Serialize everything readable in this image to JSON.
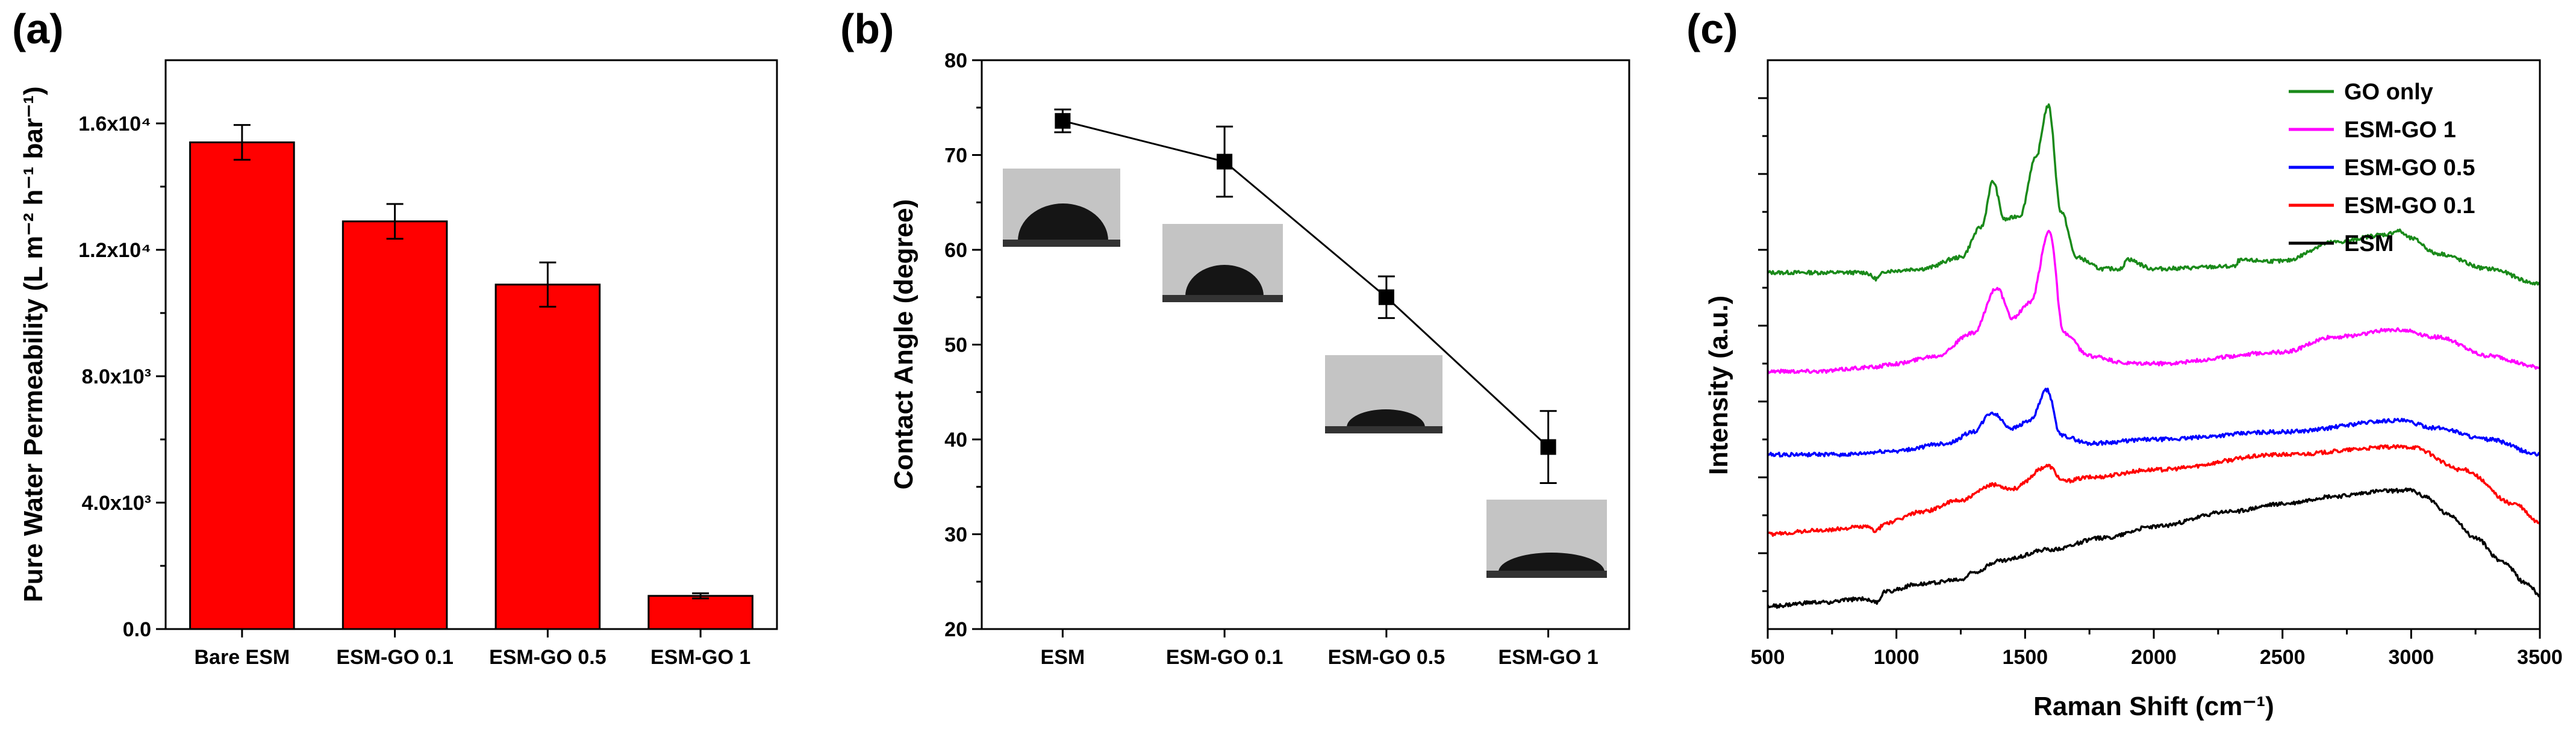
{
  "panels": {
    "a": {
      "letter": "(a)",
      "chart_data": {
        "type": "bar",
        "categories": [
          "Bare ESM",
          "ESM-GO 0.1",
          "ESM-GO 0.5",
          "ESM-GO 1"
        ],
        "values": [
          15400,
          12900,
          10900,
          1050
        ],
        "errors": [
          550,
          550,
          700,
          80
        ],
        "ylabel": "Pure Water Permeability (L m⁻² h⁻¹ bar⁻¹)",
        "ylim": [
          0,
          18000
        ],
        "yticks": [
          {
            "value": 0,
            "label": "0.0"
          },
          {
            "value": 4000,
            "label": "4.0x10³"
          },
          {
            "value": 8000,
            "label": "8.0x10³"
          },
          {
            "value": 12000,
            "label": "1.2x10⁴"
          },
          {
            "value": 16000,
            "label": "1.6x10⁴"
          }
        ],
        "bar_color": "#ff0000"
      }
    },
    "b": {
      "letter": "(b)",
      "chart_data": {
        "type": "line",
        "categories": [
          "ESM",
          "ESM-GO 0.1",
          "ESM-GO 0.5",
          "ESM-GO 1"
        ],
        "values": [
          73.6,
          69.3,
          55.0,
          39.2
        ],
        "errors": [
          1.2,
          3.7,
          2.2,
          3.8
        ],
        "ylabel": "Contact Angle (degree)",
        "ylim": [
          20,
          80
        ],
        "yticks": [
          20,
          30,
          40,
          50,
          60,
          70,
          80
        ],
        "line_color": "#000000"
      }
    },
    "c": {
      "letter": "(c)",
      "chart_data": {
        "type": "line",
        "xlabel": "Raman Shift (cm⁻¹)",
        "ylabel": "Intensity (a.u.)",
        "xlim": [
          500,
          3500
        ],
        "xticks": [
          500,
          1000,
          1500,
          2000,
          2500,
          3000,
          3500
        ],
        "legend_position": "top-right",
        "series": [
          {
            "name": "GO only",
            "color": "#1a8a1a",
            "offset": 4.4,
            "x": [
              500,
              700,
              880,
              920,
              960,
              1100,
              1250,
              1330,
              1375,
              1420,
              1480,
              1540,
              1590,
              1640,
              1700,
              1800,
              1880,
              1890,
              2000,
              2320,
              2330,
              2500,
              2700,
              2900,
              2950,
              3000,
              3100,
              3300,
              3500
            ],
            "y": [
              0.0,
              0.0,
              0.0,
              -0.08,
              0.02,
              0.05,
              0.2,
              0.6,
              1.2,
              0.7,
              0.75,
              1.5,
              2.2,
              0.8,
              0.2,
              0.05,
              0.05,
              0.18,
              0.05,
              0.08,
              0.16,
              0.15,
              0.4,
              0.5,
              0.55,
              0.45,
              0.25,
              0.05,
              -0.15
            ]
          },
          {
            "name": "ESM-GO 1",
            "color": "#ff00ff",
            "offset": 3.1,
            "x": [
              500,
              700,
              900,
              1000,
              1150,
              1300,
              1390,
              1450,
              1520,
              1595,
              1650,
              1750,
              1900,
              2000,
              2500,
              2700,
              2950,
              3100,
              3300,
              3500
            ],
            "y": [
              0.0,
              0.0,
              0.05,
              0.1,
              0.2,
              0.5,
              1.1,
              0.7,
              0.9,
              1.85,
              0.5,
              0.2,
              0.1,
              0.1,
              0.25,
              0.45,
              0.55,
              0.45,
              0.2,
              0.05
            ]
          },
          {
            "name": "ESM-GO 0.5",
            "color": "#0000ff",
            "offset": 2.0,
            "x": [
              500,
              800,
              1000,
              1200,
              1300,
              1370,
              1450,
              1520,
              1585,
              1640,
              1750,
              2000,
              2500,
              2950,
              3100,
              3300,
              3500
            ],
            "y": [
              0.0,
              0.0,
              0.05,
              0.15,
              0.3,
              0.55,
              0.35,
              0.45,
              0.85,
              0.25,
              0.15,
              0.2,
              0.3,
              0.45,
              0.35,
              0.2,
              0.0
            ]
          },
          {
            "name": "ESM-GO 0.1",
            "color": "#ff0000",
            "offset": 0.95,
            "x": [
              500,
              700,
              880,
              920,
              960,
              1100,
              1250,
              1380,
              1450,
              1590,
              1650,
              1750,
              2000,
              2500,
              2950,
              3000,
              3200,
              3400,
              3500
            ],
            "y": [
              0.0,
              0.05,
              0.1,
              0.05,
              0.15,
              0.3,
              0.45,
              0.65,
              0.6,
              0.9,
              0.7,
              0.75,
              0.85,
              1.05,
              1.15,
              1.15,
              0.85,
              0.4,
              0.15
            ]
          },
          {
            "name": "ESM",
            "color": "#000000",
            "offset": 0.0,
            "x": [
              500,
              700,
              880,
              920,
              960,
              1100,
              1250,
              1300,
              1400,
              1600,
              1800,
              2000,
              2300,
              2500,
              2700,
              2900,
              3000,
              3050,
              3150,
              3250,
              3350,
              3450,
              3500
            ],
            "y": [
              0.0,
              0.05,
              0.1,
              0.05,
              0.2,
              0.3,
              0.35,
              0.45,
              0.6,
              0.75,
              0.9,
              1.05,
              1.25,
              1.35,
              1.45,
              1.52,
              1.53,
              1.45,
              1.2,
              0.9,
              0.6,
              0.3,
              0.15
            ]
          }
        ]
      }
    }
  }
}
